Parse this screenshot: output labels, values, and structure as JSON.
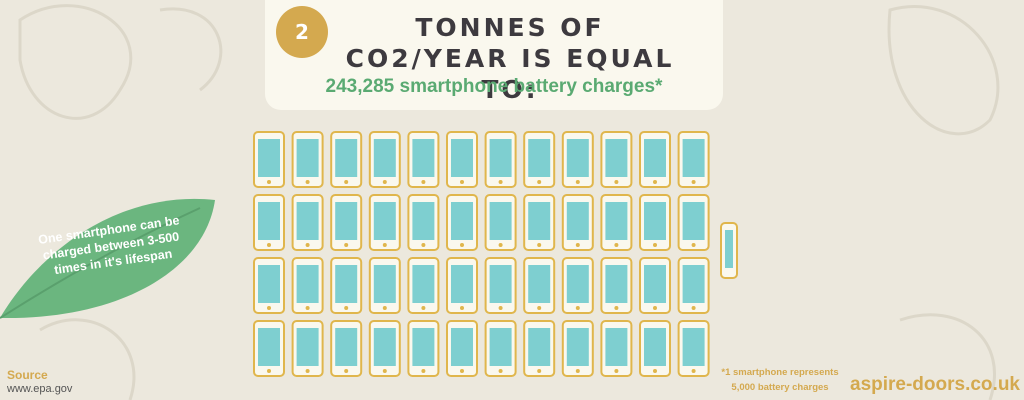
{
  "header": {
    "badge": "2",
    "title": "TONNES OF CO2/YEAR IS EQUAL TO:",
    "subtitle": "243,285 smartphone battery charges*"
  },
  "note": "One smartphone can be charged between 3-500 times in it's lifespan",
  "source": {
    "label": "Source",
    "url": "www.epa.gov"
  },
  "footnote": "*1 smartphone represents 5,000 battery charges",
  "brand": "aspire-doors.co.uk"
}
